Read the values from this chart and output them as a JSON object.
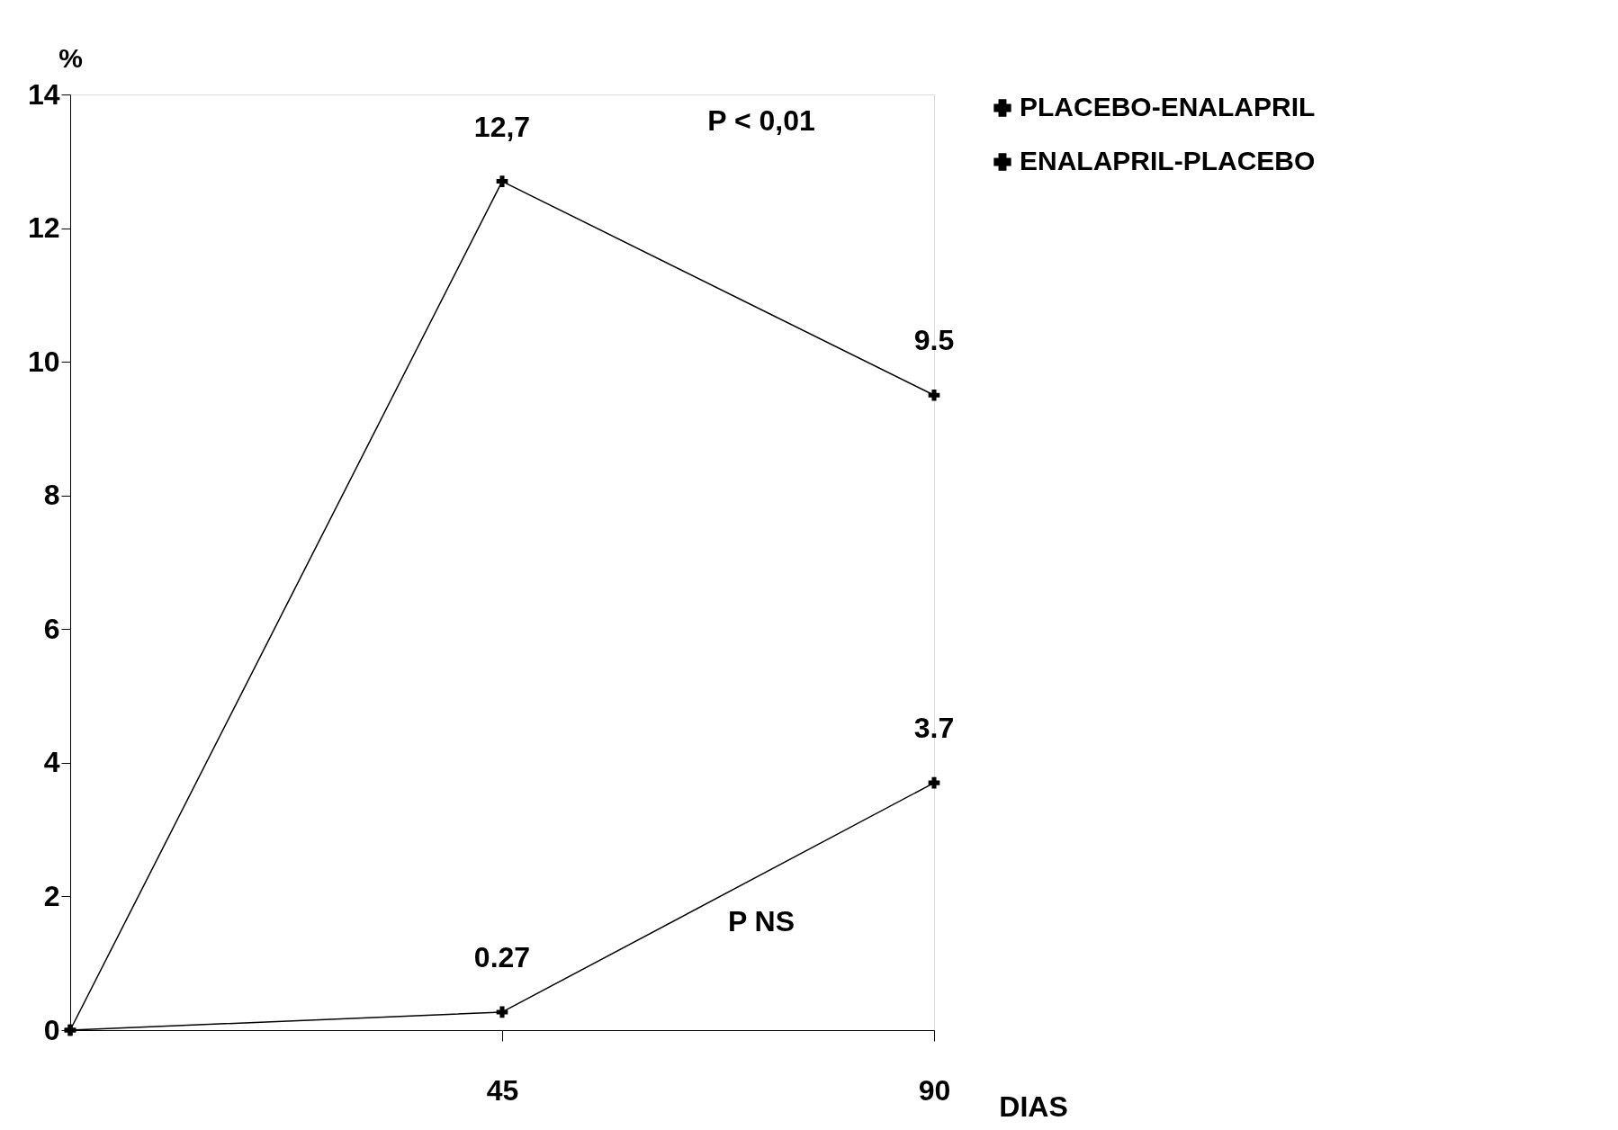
{
  "chart_data": {
    "type": "line",
    "x": [
      0,
      45,
      90
    ],
    "xlim": [
      0,
      90
    ],
    "xticks": [
      45,
      90
    ],
    "ylim": [
      0,
      14
    ],
    "yticks": [
      0,
      2,
      4,
      6,
      8,
      10,
      12,
      14
    ],
    "xlabel": "DIAS",
    "ylabel": "%",
    "series": [
      {
        "name": "PLACEBO-ENALAPRIL",
        "color": "#000000",
        "values": [
          0,
          12.7,
          9.5
        ],
        "value_labels": [
          null,
          "12,7",
          "9.5"
        ]
      },
      {
        "name": "ENALAPRIL-PLACEBO",
        "color": "#000000",
        "values": [
          0,
          0.27,
          3.7
        ],
        "value_labels": [
          null,
          "0.27",
          "3.7"
        ]
      }
    ],
    "annotations": [
      "P < 0,01",
      "P NS"
    ],
    "marker": "cross",
    "line_style": "solid",
    "grid": false,
    "legend": "right"
  }
}
